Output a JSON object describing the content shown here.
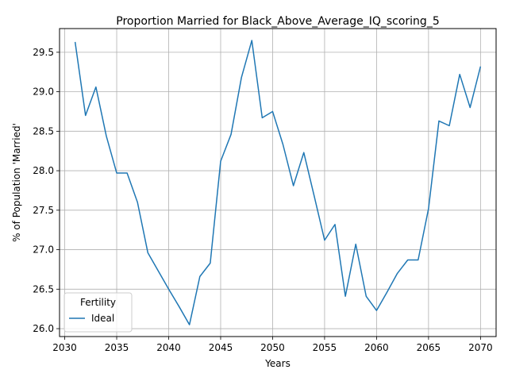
{
  "chart_data": {
    "type": "line",
    "title": "Proportion Married for Black_Above_Average_IQ_scoring_5",
    "xlabel": "Years",
    "ylabel": "% of Population 'Married'",
    "xlim": [
      2029.5,
      2071.5
    ],
    "ylim": [
      25.9,
      29.8
    ],
    "xticks": [
      2030,
      2035,
      2040,
      2045,
      2050,
      2055,
      2060,
      2065,
      2070
    ],
    "yticks": [
      26.0,
      26.5,
      27.0,
      27.5,
      28.0,
      28.5,
      29.0,
      29.5
    ],
    "xtick_labels": [
      "2030",
      "2035",
      "2040",
      "2045",
      "2050",
      "2055",
      "2060",
      "2065",
      "2070"
    ],
    "ytick_labels": [
      "26.0",
      "26.5",
      "27.0",
      "27.5",
      "28.0",
      "28.5",
      "29.0",
      "29.5"
    ],
    "grid": true,
    "legend": {
      "title": "Fertility",
      "placement": "lower-left"
    },
    "series": [
      {
        "name": "Ideal",
        "color": "#1f77b4",
        "x": [
          2031,
          2032,
          2033,
          2034,
          2035,
          2036,
          2037,
          2038,
          2039,
          2040,
          2041,
          2042,
          2043,
          2044,
          2045,
          2046,
          2047,
          2048,
          2049,
          2050,
          2051,
          2052,
          2053,
          2054,
          2055,
          2056,
          2057,
          2058,
          2059,
          2060,
          2061,
          2062,
          2063,
          2064,
          2065,
          2066,
          2067,
          2068,
          2069,
          2070
        ],
        "y": [
          29.63,
          28.7,
          29.06,
          28.44,
          27.97,
          27.97,
          27.6,
          26.96,
          26.73,
          26.5,
          26.28,
          26.05,
          26.66,
          26.83,
          28.12,
          28.46,
          29.18,
          29.65,
          28.67,
          28.75,
          28.33,
          27.81,
          28.23,
          27.68,
          27.12,
          27.32,
          26.41,
          27.07,
          26.41,
          26.23,
          26.46,
          26.7,
          26.87,
          26.87,
          27.52,
          28.63,
          28.57,
          29.22,
          28.8,
          29.32
        ]
      }
    ]
  }
}
